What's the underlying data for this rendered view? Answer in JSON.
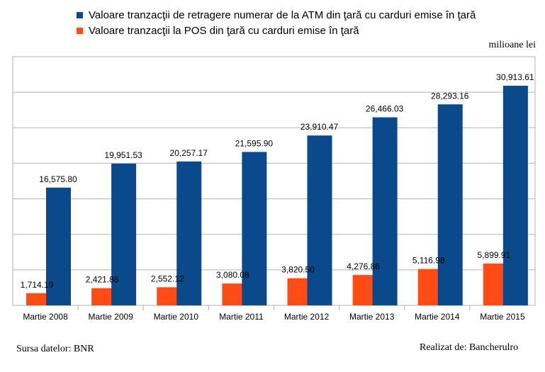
{
  "chart_data": {
    "type": "bar",
    "categories": [
      "Martie 2008",
      "Martie 2009",
      "Martie 2010",
      "Martie 2011",
      "Martie 2012",
      "Martie 2013",
      "Martie 2014",
      "Martie 2015"
    ],
    "series": [
      {
        "name": "Valoare tranzacţii de retragere numerar de la ATM din ţară cu carduri emise în ţară",
        "color": "#0a4a8c",
        "values": [
          16575.8,
          19951.53,
          20257.17,
          21595.9,
          23910.47,
          26466.03,
          28293.16,
          30913.61
        ],
        "labels": [
          "16,575.80",
          "19,951.53",
          "20,257.17",
          "21,595.90",
          "23,910.47",
          "26,466.03",
          "28,293.16",
          "30,913.61"
        ]
      },
      {
        "name": "Valoare tranzacţii la POS din ţară cu carduri emise în ţară",
        "color": "#ff4b14",
        "values": [
          1714.19,
          2421.86,
          2552.12,
          3080.08,
          3820.5,
          4276.86,
          5116.98,
          5899.91
        ],
        "labels": [
          "1,714.19",
          "2,421.86",
          "2,552.12",
          "3,080.08",
          "3,820.50",
          "4,276.86",
          "5,116.98",
          "5,899.91"
        ]
      }
    ],
    "ylim": [
      0,
      35000
    ],
    "grid": true,
    "legend_position": "top",
    "unit_label": "milioane lei"
  },
  "footer": {
    "source": "Sursa datelor: BNR",
    "credit": "Realizat de: Bancherulro"
  }
}
